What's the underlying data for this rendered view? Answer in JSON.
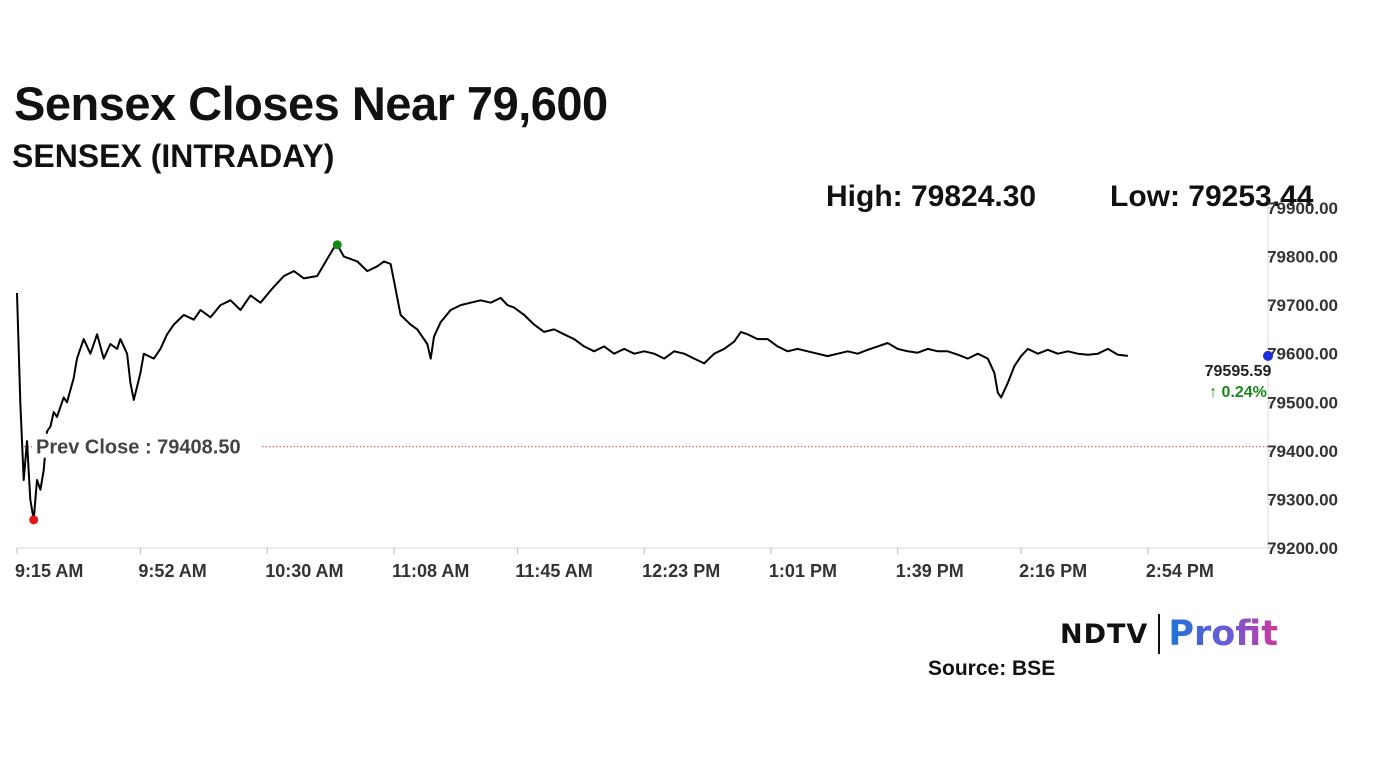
{
  "header": {
    "title": "Sensex Closes Near 79,600",
    "subtitle": "SENSEX (INTRADAY)"
  },
  "stats": {
    "high": "High: 79824.30",
    "low": "Low: 79253.44"
  },
  "footer": {
    "brand_ndtv": "NDTV",
    "brand_profit": "Profit",
    "source": "Source: BSE"
  },
  "colors": {
    "line": "#000000",
    "prev_close_line": "#d94040",
    "high_marker": "#148a14",
    "low_marker": "#e01818",
    "last_marker": "#1e2dd8",
    "change_up": "#1a8a1a",
    "axis_text": "#333333"
  },
  "chart_data": {
    "type": "line",
    "title": "SENSEX (INTRADAY)",
    "y_min": 79200,
    "y_max": 79900,
    "y_tick_values": [
      79900,
      79800,
      79700,
      79600,
      79500,
      79400,
      79300,
      79200
    ],
    "y_tick_labels": [
      "79900.00",
      "79800.00",
      "79700.00",
      "79600.00",
      "79500.00",
      "79400.00",
      "79300.00",
      "79200.00"
    ],
    "x_tick_labels": [
      "9:15 AM",
      "9:52 AM",
      "10:30 AM",
      "11:08 AM",
      "11:45 AM",
      "12:23 PM",
      "1:01 PM",
      "1:39 PM",
      "2:16 PM",
      "2:54 PM"
    ],
    "x_tick_minutes": [
      0,
      37,
      75,
      113,
      150,
      188,
      226,
      264,
      301,
      339
    ],
    "x_range_minutes": [
      0,
      375
    ],
    "prev_close": 79408.5,
    "prev_close_label": "Prev Close : 79408.50",
    "high": 79824.3,
    "low": 79253.44,
    "last": 79595.59,
    "last_label": "79595.59",
    "change_label": "0.24%",
    "change_direction": "up",
    "series": [
      {
        "points": [
          [
            0,
            79725
          ],
          [
            1,
            79500
          ],
          [
            2,
            79340
          ],
          [
            3,
            79420
          ],
          [
            4,
            79300
          ],
          [
            5,
            79258
          ],
          [
            6,
            79340
          ],
          [
            7,
            79320
          ],
          [
            8,
            79360
          ],
          [
            9,
            79440
          ],
          [
            10,
            79450
          ],
          [
            11,
            79480
          ],
          [
            12,
            79470
          ],
          [
            14,
            79510
          ],
          [
            15,
            79500
          ],
          [
            17,
            79550
          ],
          [
            18,
            79590
          ],
          [
            20,
            79630
          ],
          [
            22,
            79600
          ],
          [
            24,
            79640
          ],
          [
            26,
            79590
          ],
          [
            28,
            79620
          ],
          [
            30,
            79610
          ],
          [
            31,
            79630
          ],
          [
            33,
            79600
          ],
          [
            34,
            79540
          ],
          [
            35,
            79505
          ],
          [
            37,
            79560
          ],
          [
            38,
            79600
          ],
          [
            41,
            79590
          ],
          [
            43,
            79610
          ],
          [
            45,
            79640
          ],
          [
            47,
            79660
          ],
          [
            50,
            79680
          ],
          [
            53,
            79670
          ],
          [
            55,
            79690
          ],
          [
            58,
            79675
          ],
          [
            61,
            79700
          ],
          [
            64,
            79710
          ],
          [
            67,
            79690
          ],
          [
            70,
            79720
          ],
          [
            73,
            79705
          ],
          [
            76,
            79730
          ],
          [
            80,
            79760
          ],
          [
            83,
            79770
          ],
          [
            86,
            79755
          ],
          [
            90,
            79760
          ],
          [
            93,
            79795
          ],
          [
            95,
            79818
          ],
          [
            96,
            79824.3
          ],
          [
            98,
            79800
          ],
          [
            102,
            79790
          ],
          [
            105,
            79770
          ],
          [
            108,
            79780
          ],
          [
            110,
            79790
          ],
          [
            112,
            79785
          ],
          [
            113,
            79750
          ],
          [
            115,
            79680
          ],
          [
            118,
            79660
          ],
          [
            120,
            79650
          ],
          [
            123,
            79620
          ],
          [
            124,
            79590
          ],
          [
            125,
            79635
          ],
          [
            127,
            79665
          ],
          [
            130,
            79690
          ],
          [
            133,
            79700
          ],
          [
            136,
            79705
          ],
          [
            139,
            79710
          ],
          [
            142,
            79705
          ],
          [
            145,
            79715
          ],
          [
            147,
            79700
          ],
          [
            149,
            79695
          ],
          [
            152,
            79680
          ],
          [
            155,
            79660
          ],
          [
            158,
            79645
          ],
          [
            161,
            79650
          ],
          [
            164,
            79640
          ],
          [
            167,
            79630
          ],
          [
            170,
            79615
          ],
          [
            173,
            79605
          ],
          [
            176,
            79615
          ],
          [
            179,
            79600
          ],
          [
            182,
            79610
          ],
          [
            185,
            79600
          ],
          [
            188,
            79605
          ],
          [
            191,
            79600
          ],
          [
            194,
            79590
          ],
          [
            197,
            79605
          ],
          [
            200,
            79600
          ],
          [
            203,
            79590
          ],
          [
            206,
            79580
          ],
          [
            209,
            79600
          ],
          [
            212,
            79610
          ],
          [
            215,
            79625
          ],
          [
            217,
            79645
          ],
          [
            219,
            79640
          ],
          [
            222,
            79630
          ],
          [
            225,
            79630
          ],
          [
            228,
            79615
          ],
          [
            231,
            79605
          ],
          [
            234,
            79610
          ],
          [
            237,
            79605
          ],
          [
            240,
            79600
          ],
          [
            243,
            79595
          ],
          [
            246,
            79600
          ],
          [
            249,
            79605
          ],
          [
            252,
            79600
          ],
          [
            255,
            79608
          ],
          [
            258,
            79615
          ],
          [
            261,
            79622
          ],
          [
            264,
            79610
          ],
          [
            267,
            79605
          ],
          [
            270,
            79602
          ],
          [
            273,
            79610
          ],
          [
            276,
            79605
          ],
          [
            279,
            79605
          ],
          [
            282,
            79598
          ],
          [
            285,
            79590
          ],
          [
            288,
            79600
          ],
          [
            291,
            79590
          ],
          [
            293,
            79560
          ],
          [
            294,
            79520
          ],
          [
            295,
            79510
          ],
          [
            297,
            79540
          ],
          [
            299,
            79575
          ],
          [
            301,
            79595
          ],
          [
            303,
            79610
          ],
          [
            306,
            79600
          ],
          [
            309,
            79608
          ],
          [
            312,
            79600
          ],
          [
            315,
            79605
          ],
          [
            318,
            79600
          ],
          [
            321,
            79598
          ],
          [
            324,
            79600
          ],
          [
            327,
            79610
          ],
          [
            330,
            79598
          ],
          [
            333,
            79595.59
          ]
        ]
      }
    ]
  }
}
